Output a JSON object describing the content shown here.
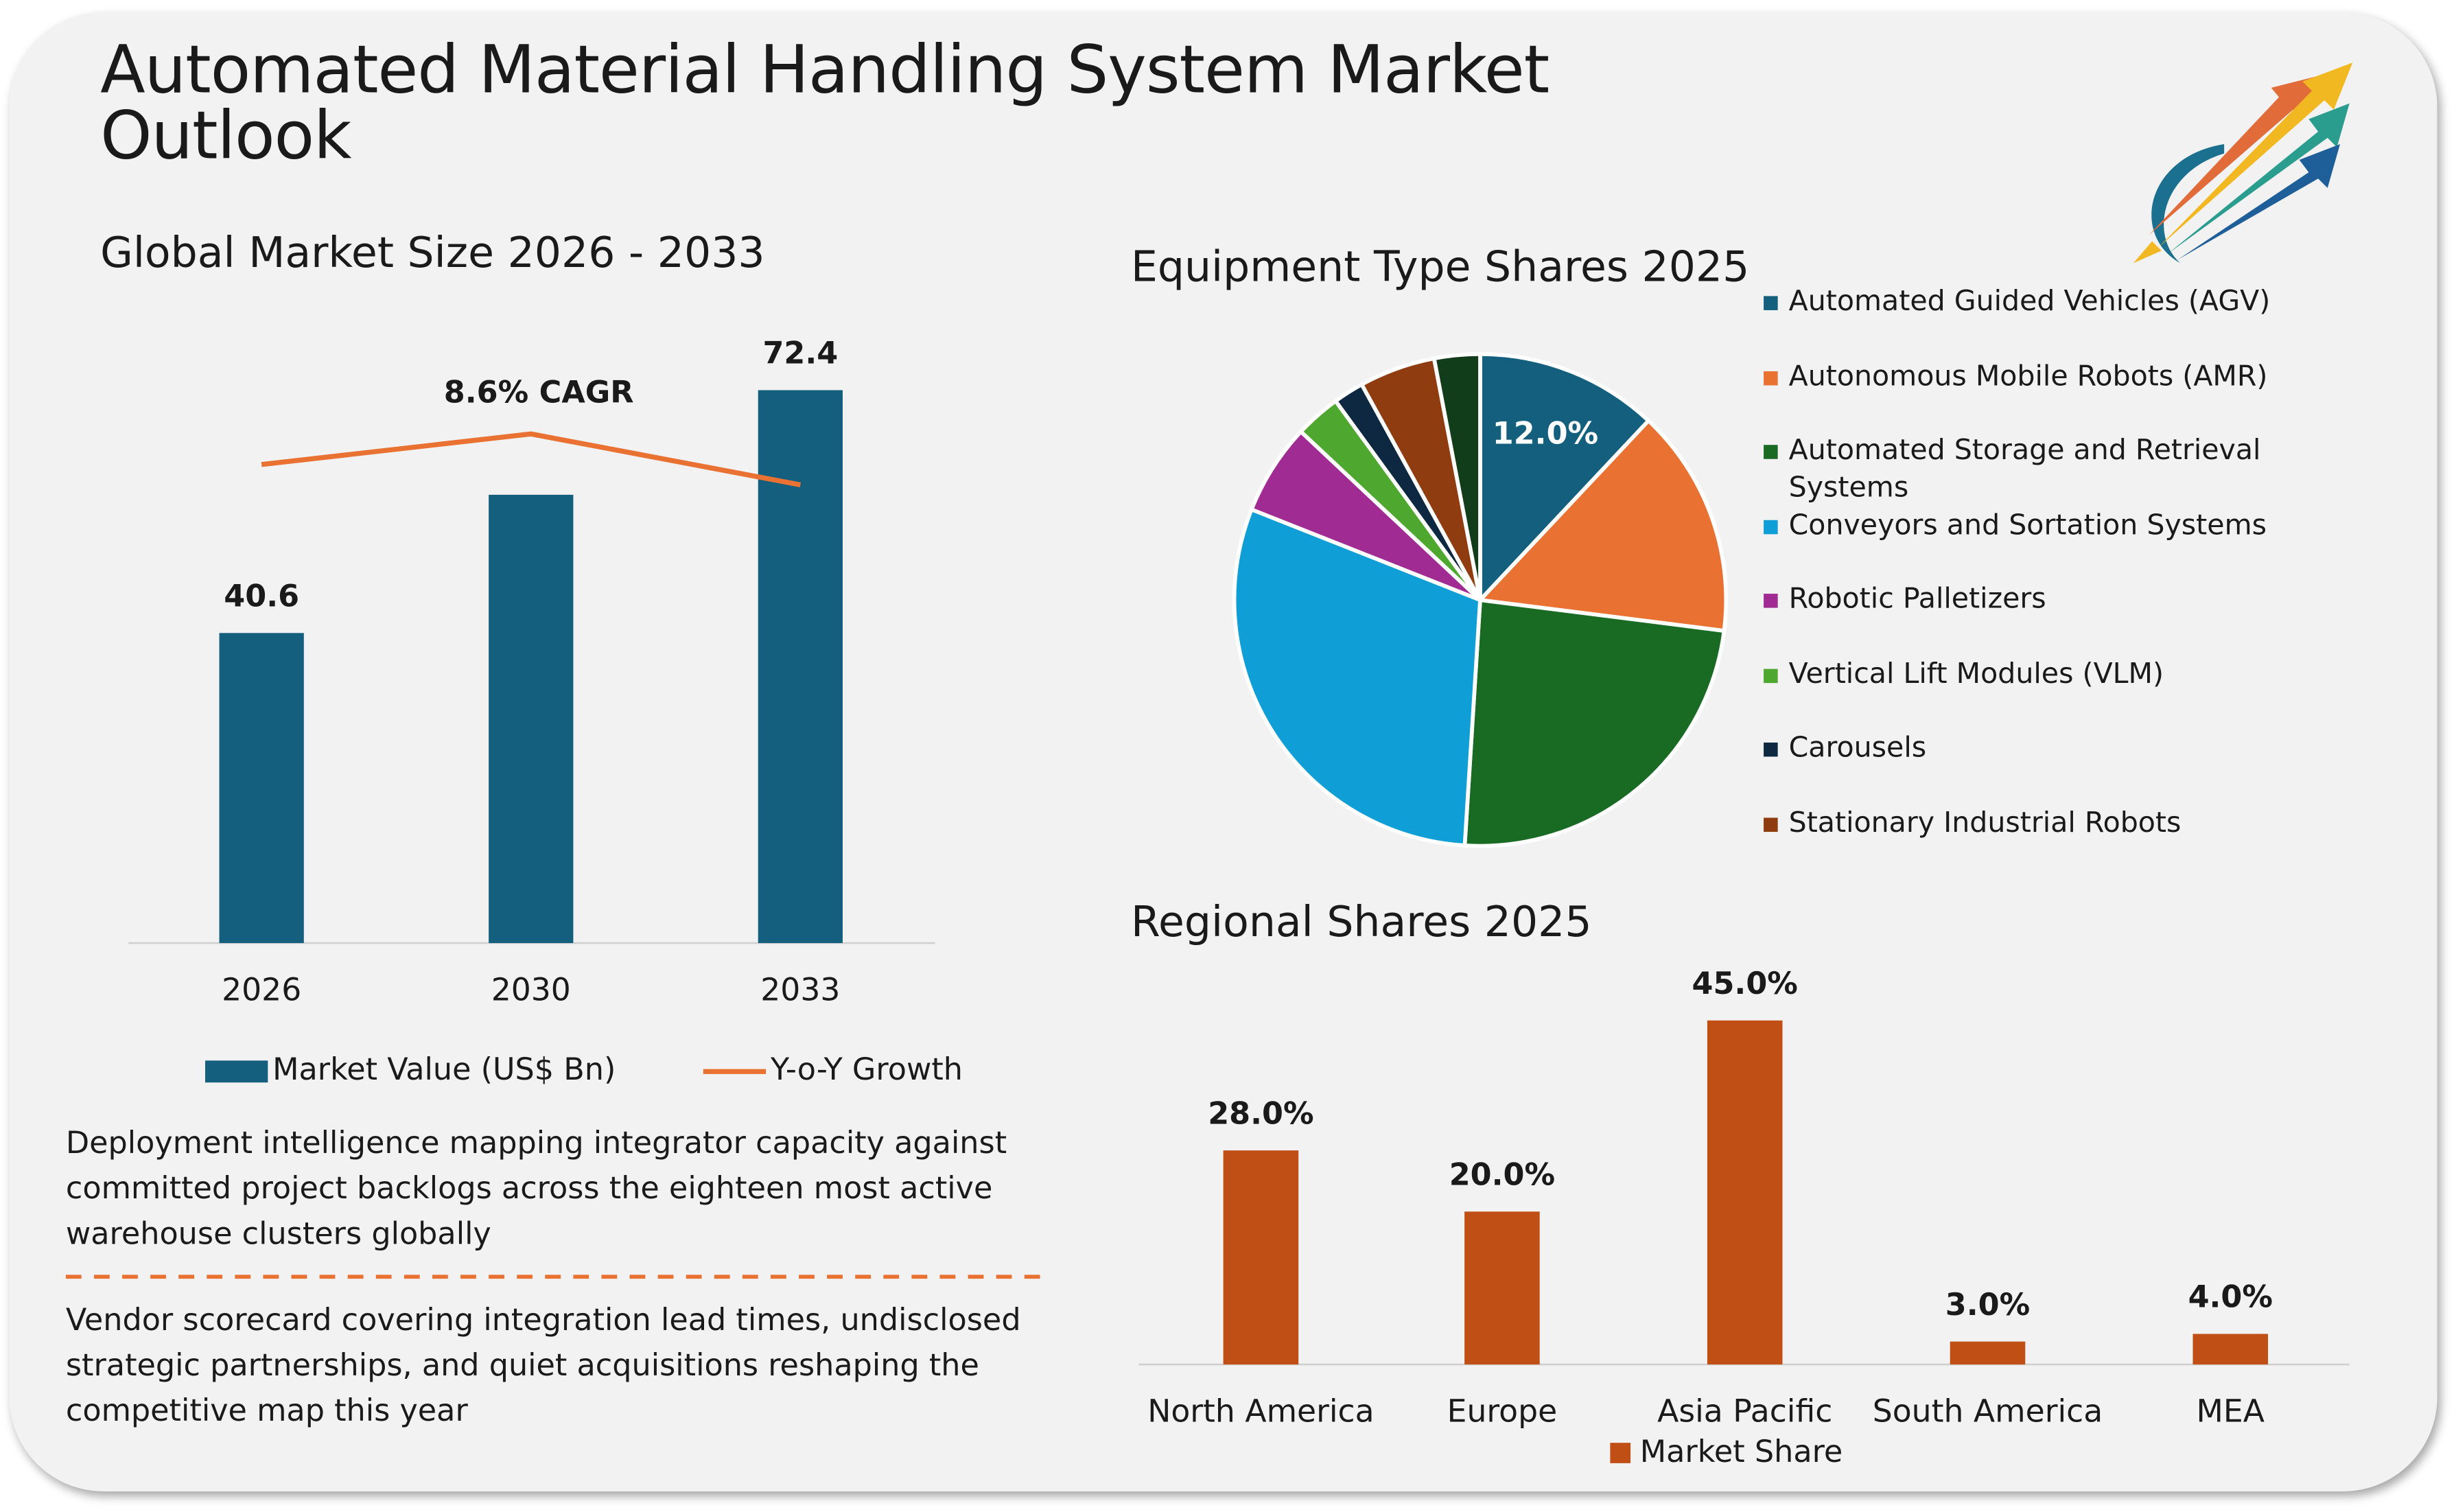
{
  "title": "Automated Material Handling System Market Outlook",
  "notes": [
    "Deployment intelligence mapping integrator capacity against committed project backlogs across the eighteen most active warehouse clusters globally",
    "Vendor scorecard covering integration lead times, undisclosed strategic partnerships, and quiet acquisitions reshaping the competitive map this year"
  ],
  "chart_data": [
    {
      "type": "bar",
      "title": "Global Market Size 2026 - 2033",
      "categories": [
        "2026",
        "2030",
        "2033"
      ],
      "ylim": [
        0,
        80
      ],
      "y2lim": [
        0,
        12
      ],
      "series": [
        {
          "name": "Market Value (US$ Bn)",
          "color": "#155f7e",
          "values": [
            40.6,
            58.7,
            72.4
          ],
          "value_labels": [
            "40.6",
            null,
            "72.4"
          ]
        },
        {
          "name": "Y-o-Y Growth",
          "type": "line",
          "axis": "y2",
          "color": "#e97132",
          "values": [
            9.4,
            10.0,
            9.0
          ]
        }
      ],
      "annotations": [
        "8.6% CAGR"
      ],
      "legend": "bottom"
    },
    {
      "type": "pie",
      "title": "Equipment Type Shares 2025",
      "categories": [
        "Automated Guided Vehicles (AGV)",
        "Autonomous Mobile Robots (AMR)",
        "Automated Storage and Retrieval Systems",
        "Conveyors and Sortation Systems",
        "Robotic Palletizers",
        "Vertical Lift Modules (VLM)",
        "Carousels",
        "Stationary Industrial Robots",
        null
      ],
      "values": [
        12,
        15,
        24,
        30,
        6,
        3,
        2,
        5,
        3
      ],
      "value_labels": [
        "12.0%",
        null,
        null,
        null,
        null,
        null,
        null,
        null,
        null
      ],
      "colors": [
        "#155f7e",
        "#e97132",
        "#196b24",
        "#0f9ed5",
        "#a02b93",
        "#4ea72e",
        "#0e2841",
        "#8f3c10",
        "#123d1a"
      ],
      "legend": "right"
    },
    {
      "type": "bar",
      "title": "Regional Shares 2025",
      "categories": [
        "North America",
        "Europe",
        "Asia Pacific",
        "South America",
        "MEA"
      ],
      "ylim": [
        0,
        50
      ],
      "series": [
        {
          "name": "Market Share",
          "color": "#c04f15",
          "values": [
            28,
            20,
            45,
            3,
            4
          ],
          "value_labels": [
            "28.0%",
            "20.0%",
            "45.0%",
            "3.0%",
            "4.0%"
          ]
        }
      ],
      "legend": "bottom"
    }
  ]
}
